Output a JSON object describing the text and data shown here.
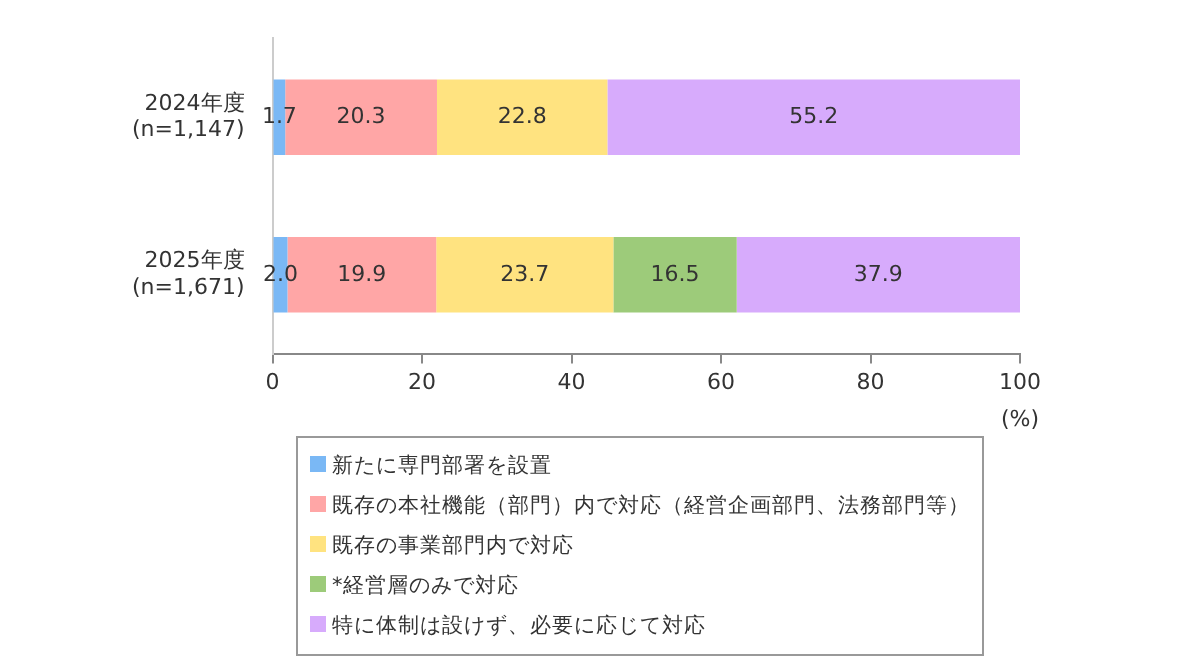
{
  "chart_data": {
    "type": "bar",
    "orientation": "horizontal",
    "stacked": true,
    "categories": [
      "2024年度\n(n=1,147)",
      "2025年度\n(n=1,671)"
    ],
    "series": [
      {
        "name": "新たに専門部署を設置",
        "color": "#7ab8f5",
        "values": [
          1.7,
          2.0
        ],
        "value_labels": [
          "1.7",
          "2.0"
        ]
      },
      {
        "name": "既存の本社機能（部門）内で対応（経営企画部門、法務部門等）",
        "color": "#ffa6a6",
        "values": [
          20.3,
          19.9
        ],
        "value_labels": [
          "20.3",
          "19.9"
        ]
      },
      {
        "name": "既存の事業部門内で対応",
        "color": "#ffe380",
        "values": [
          22.8,
          23.7
        ],
        "value_labels": [
          "22.8",
          "23.7"
        ]
      },
      {
        "name": "*経営層のみで対応",
        "color": "#9dcb7a",
        "values": [
          null,
          16.5
        ],
        "value_labels": [
          null,
          "16.5"
        ]
      },
      {
        "name": "特に体制は設けず、必要に応じて対応",
        "color": "#d7abfc",
        "values": [
          55.2,
          37.9
        ],
        "value_labels": [
          "55.2",
          "37.9"
        ]
      }
    ],
    "xlim": [
      0,
      100
    ],
    "xticks": [
      0,
      20,
      40,
      60,
      80,
      100
    ],
    "xlabel": "(%)",
    "grid": false,
    "legend": "bottom"
  }
}
